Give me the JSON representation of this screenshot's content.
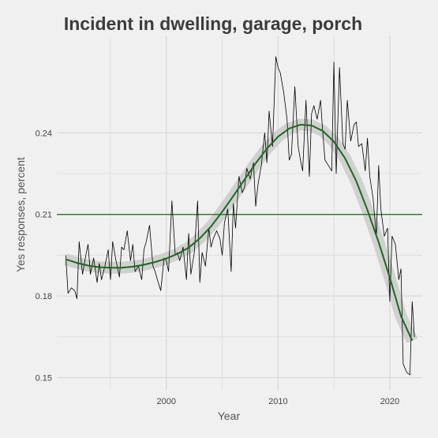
{
  "chart_data": {
    "type": "line",
    "title": "Incident in dwelling, garage, porch",
    "xlabel": "Year",
    "ylabel": "Yes responses, percent",
    "xlim": [
      1990.2,
      2022.9
    ],
    "ylim": [
      0.1455,
      0.2755
    ],
    "x_ticks": [
      2000,
      2010,
      2020
    ],
    "y_ticks": [
      0.15,
      0.18,
      0.21,
      0.24
    ],
    "x_tick_labels": [
      "2000",
      "2010",
      "2020"
    ],
    "y_tick_labels": [
      "0.15",
      "0.18",
      "0.21",
      "0.24"
    ],
    "reference_line": {
      "y": 0.21,
      "color": "#1a6b1a"
    },
    "grid": true,
    "legend": "none",
    "colors": {
      "background": "#f0f0f0",
      "grid": "#d6d6d6",
      "raw_line": "#000000",
      "trend_line": "#1a6b1a",
      "band": "#cccccc"
    },
    "series": [
      {
        "points": [
          [
            1991.0,
            0.195
          ],
          [
            1991.2,
            0.181
          ],
          [
            1991.5,
            0.183
          ],
          [
            1991.8,
            0.182
          ],
          [
            1992.0,
            0.179
          ],
          [
            1992.2,
            0.2
          ],
          [
            1992.5,
            0.188
          ],
          [
            1992.8,
            0.195
          ],
          [
            1993.0,
            0.199
          ],
          [
            1993.2,
            0.188
          ],
          [
            1993.5,
            0.194
          ],
          [
            1993.8,
            0.185
          ],
          [
            1994.0,
            0.192
          ],
          [
            1994.2,
            0.186
          ],
          [
            1994.5,
            0.191
          ],
          [
            1994.8,
            0.197
          ],
          [
            1995.0,
            0.186
          ],
          [
            1995.2,
            0.2
          ],
          [
            1995.5,
            0.193
          ],
          [
            1995.8,
            0.187
          ],
          [
            1996.0,
            0.198
          ],
          [
            1996.2,
            0.197
          ],
          [
            1996.5,
            0.204
          ],
          [
            1996.8,
            0.193
          ],
          [
            1997.0,
            0.199
          ],
          [
            1997.2,
            0.189
          ],
          [
            1997.5,
            0.191
          ],
          [
            1997.8,
            0.186
          ],
          [
            1998.0,
            0.197
          ],
          [
            1998.2,
            0.2
          ],
          [
            1998.5,
            0.206
          ],
          [
            1998.8,
            0.191
          ],
          [
            1999.0,
            0.189
          ],
          [
            1999.2,
            0.186
          ],
          [
            1999.5,
            0.182
          ],
          [
            1999.8,
            0.194
          ],
          [
            2000.0,
            0.193
          ],
          [
            2000.2,
            0.189
          ],
          [
            2000.5,
            0.215
          ],
          [
            2000.8,
            0.195
          ],
          [
            2001.0,
            0.196
          ],
          [
            2001.2,
            0.193
          ],
          [
            2001.5,
            0.198
          ],
          [
            2001.8,
            0.186
          ],
          [
            2002.0,
            0.203
          ],
          [
            2002.2,
            0.188
          ],
          [
            2002.5,
            0.196
          ],
          [
            2002.8,
            0.215
          ],
          [
            2003.0,
            0.185
          ],
          [
            2003.2,
            0.196
          ],
          [
            2003.5,
            0.191
          ],
          [
            2003.8,
            0.205
          ],
          [
            2004.0,
            0.198
          ],
          [
            2004.2,
            0.201
          ],
          [
            2004.5,
            0.204
          ],
          [
            2004.8,
            0.201
          ],
          [
            2005.0,
            0.195
          ],
          [
            2005.2,
            0.207
          ],
          [
            2005.5,
            0.212
          ],
          [
            2005.8,
            0.189
          ],
          [
            2006.0,
            0.214
          ],
          [
            2006.2,
            0.205
          ],
          [
            2006.5,
            0.224
          ],
          [
            2006.8,
            0.218
          ],
          [
            2007.0,
            0.22
          ],
          [
            2007.2,
            0.227
          ],
          [
            2007.5,
            0.223
          ],
          [
            2007.8,
            0.229
          ],
          [
            2008.0,
            0.213
          ],
          [
            2008.2,
            0.221
          ],
          [
            2008.5,
            0.228
          ],
          [
            2008.8,
            0.24
          ],
          [
            2009.0,
            0.229
          ],
          [
            2009.2,
            0.248
          ],
          [
            2009.5,
            0.235
          ],
          [
            2009.8,
            0.268
          ],
          [
            2010.0,
            0.264
          ],
          [
            2010.2,
            0.262
          ],
          [
            2010.5,
            0.255
          ],
          [
            2010.8,
            0.245
          ],
          [
            2011.0,
            0.23
          ],
          [
            2011.2,
            0.232
          ],
          [
            2011.5,
            0.257
          ],
          [
            2011.8,
            0.235
          ],
          [
            2012.0,
            0.23
          ],
          [
            2012.2,
            0.226
          ],
          [
            2012.5,
            0.252
          ],
          [
            2012.8,
            0.224
          ],
          [
            2013.0,
            0.247
          ],
          [
            2013.2,
            0.25
          ],
          [
            2013.5,
            0.245
          ],
          [
            2013.8,
            0.252
          ],
          [
            2014.0,
            0.24
          ],
          [
            2014.2,
            0.23
          ],
          [
            2014.5,
            0.228
          ],
          [
            2014.8,
            0.226
          ],
          [
            2015.0,
            0.266
          ],
          [
            2015.2,
            0.225
          ],
          [
            2015.5,
            0.264
          ],
          [
            2015.8,
            0.236
          ],
          [
            2016.0,
            0.234
          ],
          [
            2016.2,
            0.252
          ],
          [
            2016.5,
            0.237
          ],
          [
            2016.8,
            0.243
          ],
          [
            2017.0,
            0.244
          ],
          [
            2017.2,
            0.235
          ],
          [
            2017.5,
            0.236
          ],
          [
            2017.8,
            0.226
          ],
          [
            2018.0,
            0.238
          ],
          [
            2018.2,
            0.224
          ],
          [
            2018.5,
            0.216
          ],
          [
            2018.8,
            0.202
          ],
          [
            2019.0,
            0.228
          ],
          [
            2019.2,
            0.212
          ],
          [
            2019.5,
            0.202
          ],
          [
            2019.8,
            0.205
          ],
          [
            2020.0,
            0.178
          ],
          [
            2020.2,
            0.202
          ],
          [
            2020.5,
            0.199
          ],
          [
            2020.8,
            0.186
          ],
          [
            2021.0,
            0.19
          ],
          [
            2021.2,
            0.155
          ],
          [
            2021.5,
            0.152
          ],
          [
            2021.8,
            0.151
          ],
          [
            2022.0,
            0.178
          ],
          [
            2022.2,
            0.165
          ]
        ]
      },
      {
        "smooth": true,
        "points": [
          [
            1991.0,
            0.1935
          ],
          [
            1992.0,
            0.1922
          ],
          [
            1993.0,
            0.1912
          ],
          [
            1994.0,
            0.1906
          ],
          [
            1995.0,
            0.1904
          ],
          [
            1996.0,
            0.1904
          ],
          [
            1997.0,
            0.1908
          ],
          [
            1998.0,
            0.1915
          ],
          [
            1999.0,
            0.1925
          ],
          [
            2000.0,
            0.1938
          ],
          [
            2001.0,
            0.1955
          ],
          [
            2002.0,
            0.1978
          ],
          [
            2003.0,
            0.2012
          ],
          [
            2004.0,
            0.2056
          ],
          [
            2005.0,
            0.211
          ],
          [
            2006.0,
            0.2168
          ],
          [
            2007.0,
            0.2228
          ],
          [
            2008.0,
            0.2288
          ],
          [
            2009.0,
            0.2342
          ],
          [
            2010.0,
            0.2386
          ],
          [
            2011.0,
            0.2416
          ],
          [
            2012.0,
            0.243
          ],
          [
            2013.0,
            0.2427
          ],
          [
            2014.0,
            0.2407
          ],
          [
            2015.0,
            0.2368
          ],
          [
            2016.0,
            0.2306
          ],
          [
            2017.0,
            0.2222
          ],
          [
            2018.0,
            0.2116
          ],
          [
            2019.0,
            0.1998
          ],
          [
            2020.0,
            0.1868
          ],
          [
            2021.0,
            0.1726
          ],
          [
            2022.0,
            0.1636
          ]
        ]
      }
    ]
  }
}
